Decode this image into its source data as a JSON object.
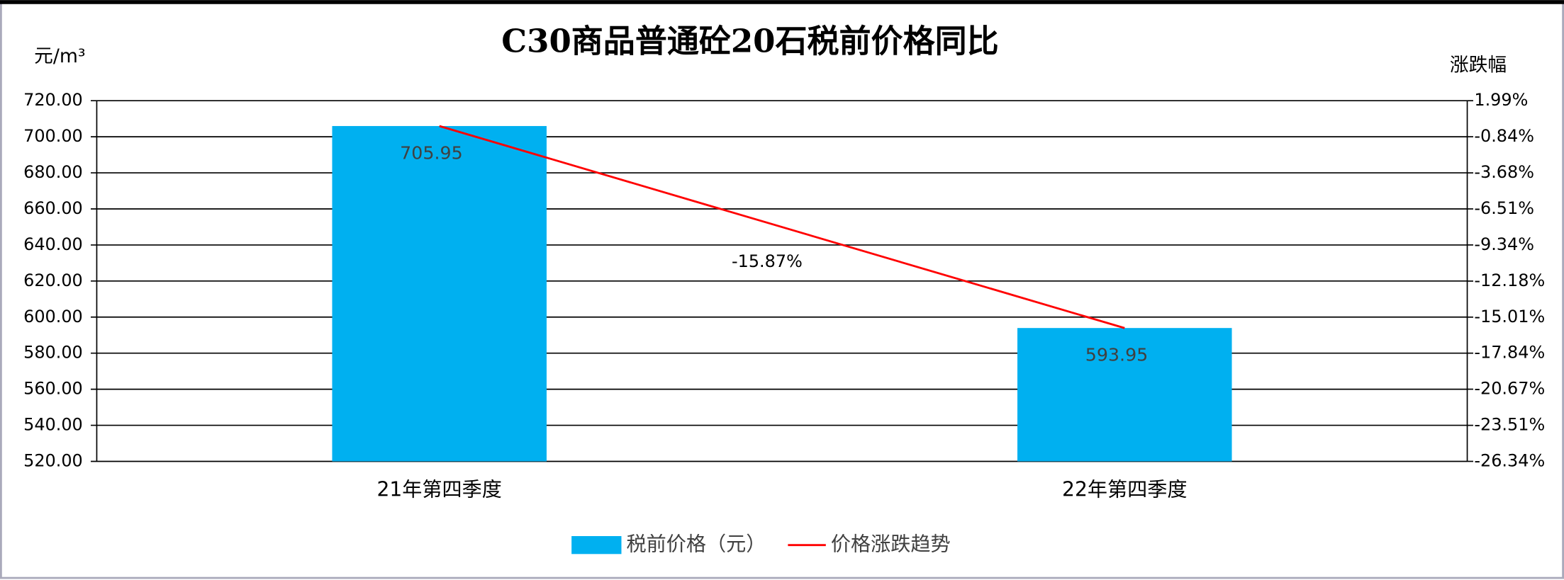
{
  "chart_data": {
    "type": "bar_line",
    "title": "C30商品普通砼20石税前价格同比",
    "y_label": "元/m³",
    "y2_label": "涨跌幅",
    "categories": [
      "21年第四季度",
      "22年第四季度"
    ],
    "series": [
      {
        "name": "税前价格（元）",
        "type": "bar",
        "color": "#00b0f0",
        "values": [
          705.95,
          593.95
        ]
      },
      {
        "name": "价格涨跌趋势",
        "type": "line",
        "color": "#ff0000",
        "axis": "y2",
        "values": [
          0,
          -15.87
        ],
        "value_labels": [
          null,
          "-15.87%"
        ]
      }
    ],
    "ylim": [
      520,
      720
    ],
    "yticks": [
      {
        "value": 520,
        "label": "520.00"
      },
      {
        "value": 540,
        "label": "540.00"
      },
      {
        "value": 560,
        "label": "560.00"
      },
      {
        "value": 580,
        "label": "580.00"
      },
      {
        "value": 600,
        "label": "600.00"
      },
      {
        "value": 620,
        "label": "620.00"
      },
      {
        "value": 640,
        "label": "640.00"
      },
      {
        "value": 660,
        "label": "660.00"
      },
      {
        "value": 680,
        "label": "680.00"
      },
      {
        "value": 700,
        "label": "700.00"
      },
      {
        "value": 720,
        "label": "720.00"
      }
    ],
    "y2lim": [
      -26.34,
      1.99
    ],
    "y2ticks": [
      {
        "value": -26.34,
        "label": "-26.34%"
      },
      {
        "value": -23.51,
        "label": "-23.51%"
      },
      {
        "value": -20.67,
        "label": "-20.67%"
      },
      {
        "value": -17.84,
        "label": "-17.84%"
      },
      {
        "value": -15.01,
        "label": "-15.01%"
      },
      {
        "value": -12.18,
        "label": "-12.18%"
      },
      {
        "value": -9.34,
        "label": "-9.34%"
      },
      {
        "value": -6.51,
        "label": "-6.51%"
      },
      {
        "value": -3.68,
        "label": "-3.68%"
      },
      {
        "value": -0.84,
        "label": "-0.84%"
      },
      {
        "value": 1.99,
        "label": "1.99%"
      }
    ],
    "grid": true,
    "legend": "bottom"
  }
}
